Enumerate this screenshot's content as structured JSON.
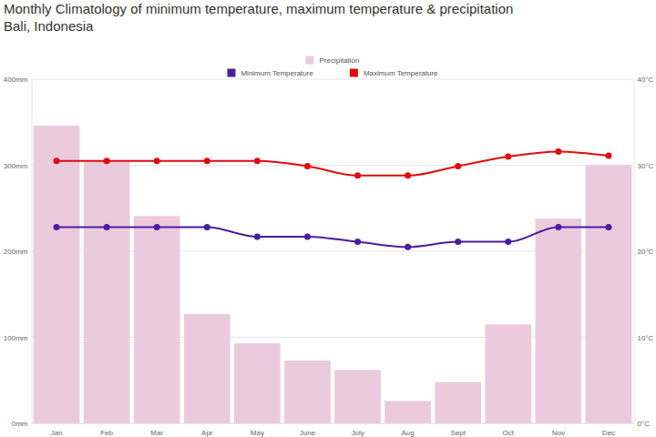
{
  "chart_data": {
    "type": "bar",
    "title": "Monthly Climatology of minimum temperature, maximum temperature & precipitation",
    "subtitle": "Bali, Indonesia",
    "categories": [
      "Jan",
      "Feb",
      "Mar",
      "Apr",
      "May",
      "June",
      "July",
      "Aug",
      "Sept",
      "Oct",
      "Nov",
      "Dec"
    ],
    "series": [
      {
        "name": "Precipitation",
        "type": "bar",
        "color": "#ebcade",
        "values": [
          346,
          305,
          241,
          127,
          93,
          73,
          62,
          26,
          48,
          115,
          238,
          300
        ]
      },
      {
        "name": "Minimum Temperature",
        "type": "line",
        "axis": "y2",
        "color": "#4b1c9e",
        "marker": "circle",
        "values": [
          22.8,
          22.8,
          22.8,
          22.8,
          21.7,
          21.7,
          21.1,
          20.5,
          21.1,
          21.1,
          22.8,
          22.8
        ]
      },
      {
        "name": "Maximum Temperature",
        "type": "line",
        "axis": "y2",
        "color": "#e00b0b",
        "marker": "circle",
        "values": [
          30.5,
          30.5,
          30.5,
          30.5,
          30.5,
          29.9,
          28.8,
          28.8,
          29.9,
          31,
          31.6,
          31.1
        ]
      }
    ],
    "ylim": [
      0,
      400
    ],
    "yticks": [
      {
        "value": 0,
        "label": "0mm"
      },
      {
        "value": 100,
        "label": "100mm"
      },
      {
        "value": 200,
        "label": "200mm"
      },
      {
        "value": 300,
        "label": "300mm"
      },
      {
        "value": 400,
        "label": "400mm"
      }
    ],
    "y2lim": [
      0,
      40
    ],
    "y2ticks": [
      {
        "value": 0,
        "label": "0°C"
      },
      {
        "value": 10,
        "label": "10°C"
      },
      {
        "value": 20,
        "label": "20°C"
      },
      {
        "value": 30,
        "label": "30°C"
      },
      {
        "value": 40,
        "label": "40°C"
      }
    ],
    "grid": true,
    "legend": "top"
  }
}
